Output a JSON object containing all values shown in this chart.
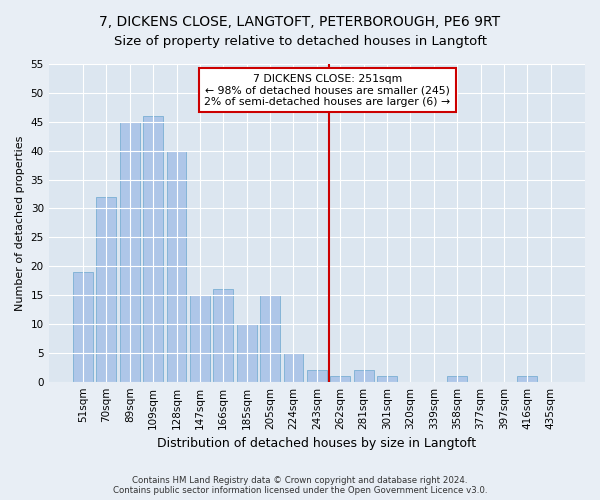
{
  "title1": "7, DICKENS CLOSE, LANGTOFT, PETERBOROUGH, PE6 9RT",
  "title2": "Size of property relative to detached houses in Langtoft",
  "xlabel": "Distribution of detached houses by size in Langtoft",
  "ylabel": "Number of detached properties",
  "footnote1": "Contains HM Land Registry data © Crown copyright and database right 2024.",
  "footnote2": "Contains public sector information licensed under the Open Government Licence v3.0.",
  "categories": [
    "51sqm",
    "70sqm",
    "89sqm",
    "109sqm",
    "128sqm",
    "147sqm",
    "166sqm",
    "185sqm",
    "205sqm",
    "224sqm",
    "243sqm",
    "262sqm",
    "281sqm",
    "301sqm",
    "320sqm",
    "339sqm",
    "358sqm",
    "377sqm",
    "397sqm",
    "416sqm",
    "435sqm"
  ],
  "values": [
    19,
    32,
    45,
    46,
    40,
    15,
    16,
    10,
    15,
    5,
    2,
    1,
    2,
    1,
    0,
    0,
    1,
    0,
    0,
    1,
    0
  ],
  "bar_color": "#aec6e8",
  "bar_edge_color": "#7aafd4",
  "vline_x_index": 10.5,
  "vline_color": "#cc0000",
  "annotation_text": "7 DICKENS CLOSE: 251sqm\n← 98% of detached houses are smaller (245)\n2% of semi-detached houses are larger (6) →",
  "annotation_box_color": "#ffffff",
  "annotation_box_edge_color": "#cc0000",
  "ylim": [
    0,
    55
  ],
  "yticks": [
    0,
    5,
    10,
    15,
    20,
    25,
    30,
    35,
    40,
    45,
    50,
    55
  ],
  "bg_color": "#e8eef5",
  "plot_bg_color": "#dce6f0",
  "title_fontsize": 10,
  "axis_label_fontsize": 8,
  "tick_fontsize": 7.5
}
